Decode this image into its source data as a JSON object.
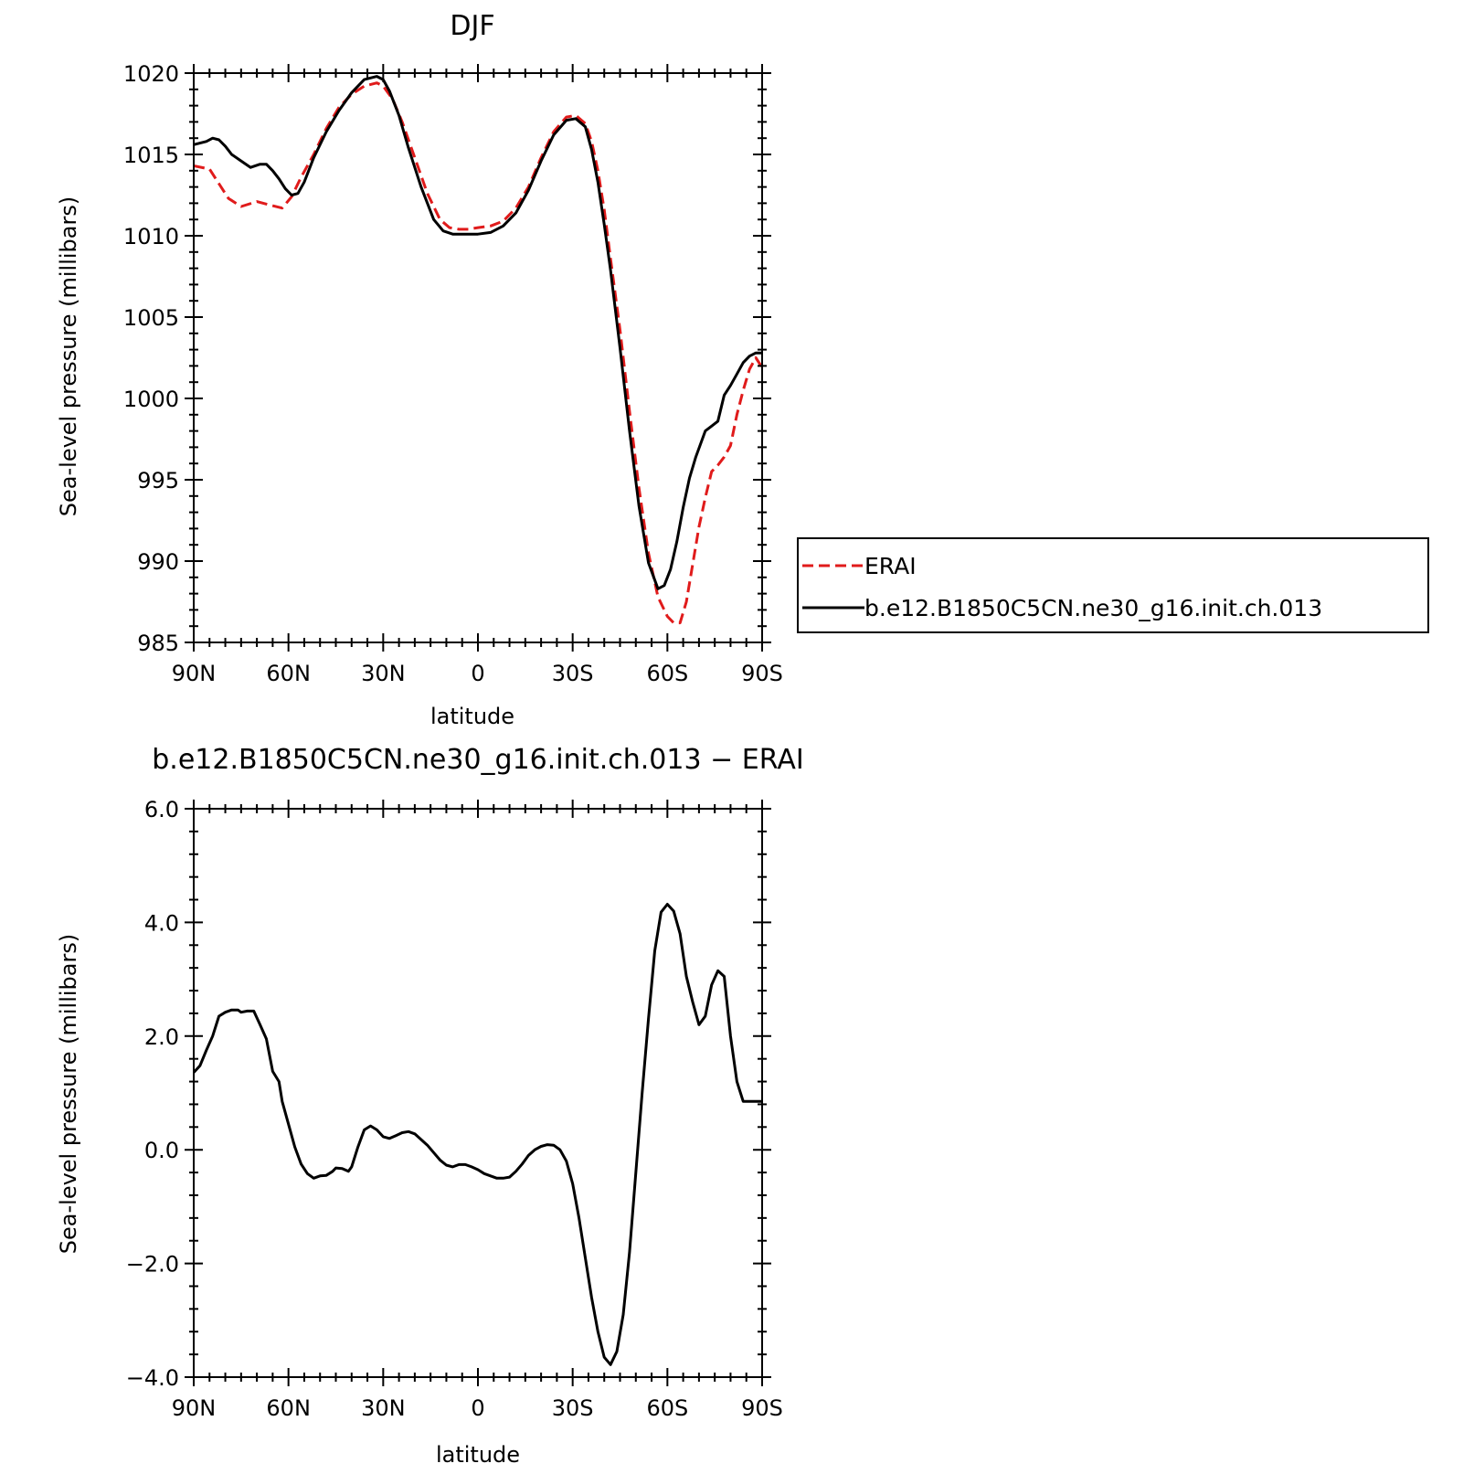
{
  "chart_data": [
    {
      "type": "line",
      "title": "DJF",
      "xlabel": "latitude",
      "ylabel": "Sea-level pressure (millibars)",
      "xlim": [
        -90,
        90
      ],
      "ylim": [
        985,
        1020
      ],
      "x_ticks": [
        -90,
        -60,
        -30,
        0,
        30,
        60,
        90
      ],
      "x_tick_labels": [
        "90N",
        "60N",
        "30N",
        "0",
        "30S",
        "60S",
        "90S"
      ],
      "y_ticks": [
        985,
        990,
        995,
        1000,
        1005,
        1010,
        1015,
        1020
      ],
      "y_tick_labels": [
        "985",
        "990",
        "995",
        "1000",
        "1005",
        "1010",
        "1015",
        "1020"
      ],
      "grid": false,
      "legend": {
        "placement": "right",
        "entries": [
          "ERAI",
          "b.e12.B1850C5CN.ne30_g16.init.ch.013"
        ]
      },
      "series": [
        {
          "name": "ERAI",
          "color": "#e01b1b",
          "dashed": true,
          "x": [
            -90,
            -85,
            -82,
            -79,
            -75,
            -70,
            -66,
            -62,
            -59,
            -56,
            -52,
            -48,
            -44,
            -40,
            -36,
            -32,
            -30,
            -27,
            -24,
            -20,
            -16,
            -12,
            -9,
            -6,
            -3,
            0,
            4,
            8,
            12,
            16,
            20,
            24,
            28,
            31,
            34,
            36,
            38,
            40,
            42,
            45,
            48,
            51,
            54,
            57,
            60,
            62,
            64,
            66,
            68,
            70,
            72,
            74,
            76,
            78,
            80,
            82,
            84,
            86,
            88,
            90
          ],
          "y": [
            1014.3,
            1014.1,
            1013.2,
            1012.3,
            1011.8,
            1012.1,
            1011.9,
            1011.7,
            1012.4,
            1013.6,
            1015.0,
            1016.6,
            1017.9,
            1018.7,
            1019.2,
            1019.4,
            1019.2,
            1018.4,
            1017.0,
            1014.8,
            1012.6,
            1011.0,
            1010.5,
            1010.4,
            1010.4,
            1010.5,
            1010.6,
            1010.9,
            1011.7,
            1013.0,
            1014.8,
            1016.4,
            1017.3,
            1017.4,
            1016.9,
            1015.8,
            1014.0,
            1011.6,
            1008.6,
            1004.2,
            999.2,
            994.5,
            990.5,
            987.8,
            986.6,
            986.2,
            986.2,
            987.5,
            989.8,
            992.1,
            993.9,
            995.5,
            995.9,
            996.4,
            997.1,
            999.0,
            1000.5,
            1001.8,
            1002.5,
            1001.9
          ]
        },
        {
          "name": "b.e12.B1850C5CN.ne30_g16.init.ch.013",
          "color": "#000000",
          "dashed": false,
          "x": [
            -90,
            -86,
            -84,
            -82,
            -80,
            -78,
            -75,
            -72,
            -69,
            -67,
            -65,
            -63,
            -61,
            -59,
            -57,
            -55,
            -52,
            -48,
            -44,
            -40,
            -36,
            -32,
            -30,
            -28,
            -25,
            -22,
            -18,
            -14,
            -11,
            -8,
            -5,
            -3,
            0,
            4,
            8,
            12,
            16,
            20,
            24,
            28,
            31,
            34,
            36,
            38,
            40,
            42,
            45,
            48,
            51,
            54,
            57,
            59,
            61,
            63,
            65,
            67,
            69,
            72,
            74,
            76,
            78,
            80,
            82,
            84,
            86,
            88,
            90
          ],
          "y": [
            1015.6,
            1015.8,
            1016.0,
            1015.9,
            1015.5,
            1015.0,
            1014.6,
            1014.2,
            1014.4,
            1014.4,
            1014.0,
            1013.5,
            1012.9,
            1012.5,
            1012.6,
            1013.3,
            1014.8,
            1016.4,
            1017.7,
            1018.8,
            1019.6,
            1019.8,
            1019.6,
            1018.9,
            1017.4,
            1015.4,
            1013.0,
            1011.0,
            1010.3,
            1010.1,
            1010.1,
            1010.1,
            1010.1,
            1010.2,
            1010.6,
            1011.4,
            1012.8,
            1014.6,
            1016.2,
            1017.1,
            1017.2,
            1016.7,
            1015.3,
            1013.3,
            1010.7,
            1007.9,
            1003.1,
            998.0,
            993.4,
            989.9,
            988.3,
            988.5,
            989.5,
            991.2,
            993.3,
            995.1,
            996.4,
            998.0,
            998.3,
            998.6,
            1000.2,
            1000.8,
            1001.5,
            1002.2,
            1002.6,
            1002.8,
            1002.8
          ]
        }
      ]
    },
    {
      "type": "line",
      "title": "b.e12.B1850C5CN.ne30_g16.init.ch.013 − ERAI",
      "xlabel": "latitude",
      "ylabel": "Sea-level pressure (millibars)",
      "xlim": [
        -90,
        90
      ],
      "ylim": [
        -4,
        6
      ],
      "x_ticks": [
        -90,
        -60,
        -30,
        0,
        30,
        60,
        90
      ],
      "x_tick_labels": [
        "90N",
        "60N",
        "30N",
        "0",
        "30S",
        "60S",
        "90S"
      ],
      "y_ticks": [
        -4,
        -2,
        0,
        2,
        4,
        6
      ],
      "y_tick_labels": [
        "−4.0",
        "−2.0",
        "0.0",
        "2.0",
        "4.0",
        "6.0"
      ],
      "grid": false,
      "series": [
        {
          "color": "#000000",
          "x": [
            -90,
            -88,
            -86,
            -84,
            -82,
            -80,
            -78,
            -76,
            -75,
            -73,
            -71,
            -69,
            -67,
            -65,
            -63,
            -62,
            -60,
            -58,
            -56,
            -54,
            -52,
            -50,
            -48,
            -46,
            -45,
            -43,
            -41,
            -40,
            -38,
            -36,
            -34,
            -32,
            -30,
            -28,
            -26,
            -24,
            -22,
            -20,
            -18,
            -16,
            -14,
            -12,
            -10,
            -8,
            -6,
            -4,
            -2,
            0,
            2,
            4,
            6,
            8,
            10,
            12,
            14,
            16,
            18,
            20,
            22,
            24,
            26,
            28,
            30,
            32,
            34,
            36,
            38,
            40,
            42,
            44,
            46,
            48,
            50,
            52,
            54,
            56,
            58,
            60,
            62,
            64,
            66,
            68,
            70,
            72,
            74,
            76,
            78,
            80,
            82,
            84,
            86,
            88,
            90
          ],
          "y": [
            1.36,
            1.48,
            1.75,
            2.0,
            2.35,
            2.42,
            2.46,
            2.46,
            2.42,
            2.44,
            2.44,
            2.2,
            1.95,
            1.38,
            1.2,
            0.85,
            0.45,
            0.05,
            -0.25,
            -0.42,
            -0.5,
            -0.46,
            -0.45,
            -0.38,
            -0.32,
            -0.33,
            -0.38,
            -0.3,
            0.05,
            0.35,
            0.42,
            0.35,
            0.23,
            0.2,
            0.25,
            0.3,
            0.32,
            0.28,
            0.18,
            0.08,
            -0.05,
            -0.18,
            -0.27,
            -0.3,
            -0.26,
            -0.26,
            -0.3,
            -0.35,
            -0.42,
            -0.46,
            -0.5,
            -0.5,
            -0.48,
            -0.38,
            -0.25,
            -0.1,
            0.0,
            0.06,
            0.09,
            0.08,
            0.0,
            -0.2,
            -0.6,
            -1.2,
            -1.9,
            -2.6,
            -3.2,
            -3.65,
            -3.78,
            -3.55,
            -2.9,
            -1.8,
            -0.4,
            1.0,
            2.3,
            3.5,
            4.18,
            4.32,
            4.2,
            3.8,
            3.05,
            2.6,
            2.2,
            2.35,
            2.9,
            3.15,
            3.05,
            2.0,
            1.2,
            0.85,
            0.85,
            0.85,
            0.85
          ]
        }
      ]
    }
  ]
}
